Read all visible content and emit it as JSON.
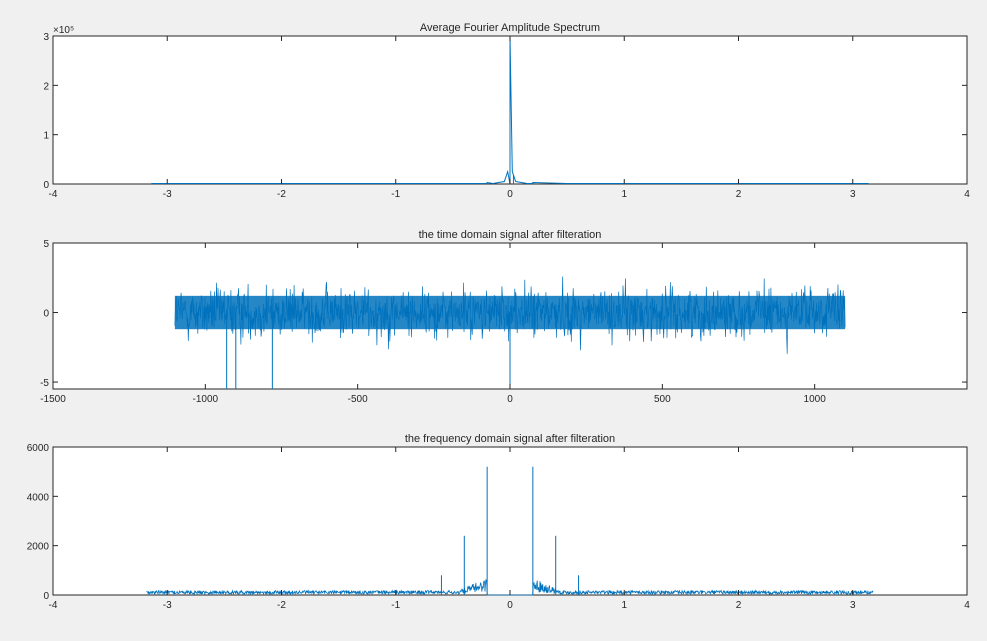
{
  "chart_data": [
    {
      "type": "line",
      "title": "Average Fourier Amplitude Spectrum",
      "xlabel": "",
      "ylabel": "",
      "xlim": [
        -4,
        4
      ],
      "ylim": [
        0,
        3
      ],
      "xticks": [
        "-4",
        "-3",
        "-2",
        "-1",
        "0",
        "1",
        "2",
        "3",
        "4"
      ],
      "yticks": [
        "0",
        "1",
        "2",
        "3"
      ],
      "exponent_label": "×10⁵",
      "grid": false,
      "series": [
        {
          "color": "#0072bd",
          "x": [
            -3.14,
            -2.5,
            -2.0,
            -1.5,
            -1.0,
            -0.5,
            -0.2,
            -0.2,
            -0.15,
            -0.05,
            -0.02,
            0.0,
            0.0,
            0.02,
            0.05,
            0.15,
            0.2,
            0.2,
            0.5,
            1.0,
            1.5,
            2.0,
            2.5,
            3.14
          ],
          "y": [
            0.01,
            0.01,
            0.01,
            0.01,
            0.01,
            0.01,
            0.01,
            0.03,
            0.01,
            0.05,
            0.25,
            0.0,
            3.0,
            0.25,
            0.05,
            0.01,
            0.01,
            0.03,
            0.01,
            0.01,
            0.01,
            0.01,
            0.01,
            0.01
          ]
        }
      ]
    },
    {
      "type": "line",
      "title": "the time domain signal after filteration",
      "xlabel": "",
      "ylabel": "",
      "xlim": [
        -1500,
        1500
      ],
      "ylim": [
        -5.5,
        5
      ],
      "xticks": [
        "-1500",
        "-1000",
        "-500",
        "0",
        "500",
        "1000"
      ],
      "yticks": [
        "-5",
        "0",
        "5"
      ],
      "grid": false,
      "series": [
        {
          "color": "#0072bd",
          "x_range": [
            -1100,
            1100
          ],
          "envelope": {
            "typical_amplitude": 2.5,
            "max": 4.5,
            "min": -5.5
          }
        }
      ]
    },
    {
      "type": "line",
      "title": "the frequency domain signal after filteration",
      "xlabel": "",
      "ylabel": "",
      "xlim": [
        -4,
        4
      ],
      "ylim": [
        0,
        6000
      ],
      "xticks": [
        "-4",
        "-3",
        "-2",
        "-1",
        "0",
        "1",
        "2",
        "3",
        "4"
      ],
      "yticks": [
        "0",
        "2000",
        "4000",
        "6000"
      ],
      "grid": false,
      "series": [
        {
          "color": "#0072bd",
          "x_range": [
            -3.18,
            3.18
          ],
          "stopband": [
            -0.2,
            0.2
          ],
          "noise_floor": 120,
          "peaks": [
            {
              "x": -0.2,
              "y": 5200
            },
            {
              "x": 0.2,
              "y": 5200
            },
            {
              "x": -0.4,
              "y": 2400
            },
            {
              "x": 0.4,
              "y": 2400
            },
            {
              "x": -0.6,
              "y": 800
            },
            {
              "x": 0.6,
              "y": 800
            }
          ]
        }
      ]
    }
  ]
}
